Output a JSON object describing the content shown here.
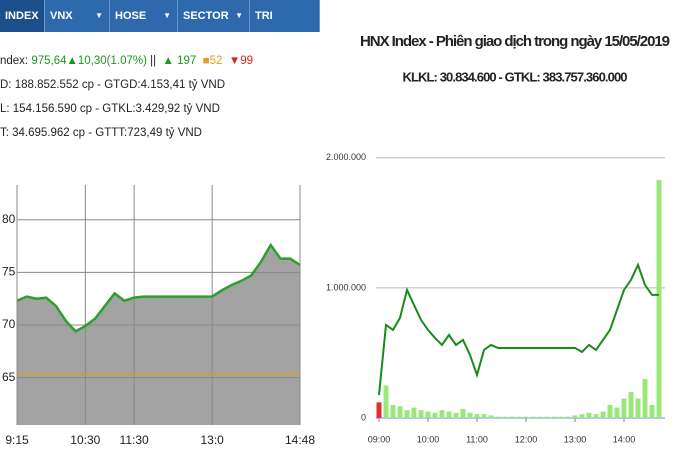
{
  "tabs": [
    "INDEX",
    "VNX",
    "HOSE",
    "SECTOR",
    "TRI"
  ],
  "info": {
    "label": "ndex:",
    "change": "975,64▲10,30(1.07%)",
    "sep": "||",
    "up": "▲ 197",
    "flat": "■52",
    "down": "▼99"
  },
  "lines": [
    "D: 188.852.552 cp - GTGD:4.153,41 tỷ VND",
    "L: 154.156.590 cp - GTKL:3.429,92 tỷ VND",
    "T: 34.695.962 cp - GTTT:723,49 tỷ VND"
  ],
  "chart_data": [
    {
      "type": "area",
      "categories": [
        "9:15",
        null,
        null,
        null,
        null,
        null,
        null,
        "10:30",
        null,
        null,
        null,
        null,
        "11:30",
        null,
        null,
        null,
        null,
        null,
        null,
        null,
        "13:0",
        null,
        null,
        null,
        null,
        null,
        null,
        null,
        null,
        "14:48"
      ],
      "values": [
        72.3,
        72.7,
        72.5,
        72.6,
        71.8,
        70.4,
        69.4,
        69.9,
        70.6,
        71.8,
        73.0,
        72.3,
        72.6,
        72.7,
        72.7,
        72.7,
        72.7,
        72.7,
        72.7,
        72.7,
        72.7,
        73.3,
        73.8,
        74.2,
        74.7,
        76.0,
        77.6,
        76.3,
        76.3,
        75.7
      ],
      "color": "#2e9e2e",
      "fill": "#a3a3a3",
      "ylim": [
        60.5,
        83.3
      ],
      "yticks": [
        80,
        75,
        70,
        65
      ],
      "grid": true,
      "reference_line": 65.34,
      "reference_color": "#c8a040"
    },
    {
      "type": "bar_line",
      "title": "HNX Index - Phiên giao dịch trong ngày 15/05/2019",
      "subtitle": "KLKL: 30.834.600 - GTKL: 383.757.360.000",
      "categories": [
        "09:00",
        null,
        null,
        null,
        null,
        null,
        null,
        "10:00",
        null,
        null,
        null,
        null,
        null,
        null,
        "11:00",
        null,
        null,
        null,
        null,
        null,
        null,
        "12:00",
        null,
        null,
        null,
        null,
        null,
        null,
        "13:00",
        null,
        null,
        null,
        null,
        null,
        null,
        "14:00",
        null,
        null,
        null,
        null,
        null
      ],
      "series": [
        {
          "kind": "bar",
          "color": "#9be87a",
          "colors": {
            "0": "#e03030"
          },
          "values": [
            120000,
            250000,
            100000,
            90000,
            60000,
            80000,
            60000,
            50000,
            40000,
            60000,
            50000,
            40000,
            70000,
            40000,
            30000,
            30000,
            20000,
            10000,
            10000,
            10000,
            10000,
            10000,
            10000,
            10000,
            10000,
            10000,
            10000,
            10000,
            20000,
            30000,
            40000,
            30000,
            50000,
            100000,
            80000,
            150000,
            200000,
            150000,
            300000,
            100000,
            1830000
          ]
        },
        {
          "kind": "line",
          "color": "#1a8a1a",
          "values": [
            176900,
            715400,
            676900,
            769200,
            984600,
            869200,
            753800,
            676900,
            615400,
            561500,
            638500,
            561500,
            600000,
            484600,
            330800,
            523100,
            561500,
            538500,
            538500,
            538500,
            538500,
            538500,
            538500,
            538500,
            538500,
            538500,
            538500,
            538500,
            538500,
            507700,
            561500,
            523100,
            600000,
            676900,
            830800,
            984600,
            1061500,
            1176900,
            1023100,
            946200,
            946200
          ]
        }
      ],
      "ylim": [
        0,
        2060000
      ],
      "yticks": [
        {
          "value": 2000000,
          "label": "2.000.000"
        },
        {
          "value": 1000000,
          "label": "1.000.000"
        },
        0
      ],
      "grid": true
    }
  ]
}
